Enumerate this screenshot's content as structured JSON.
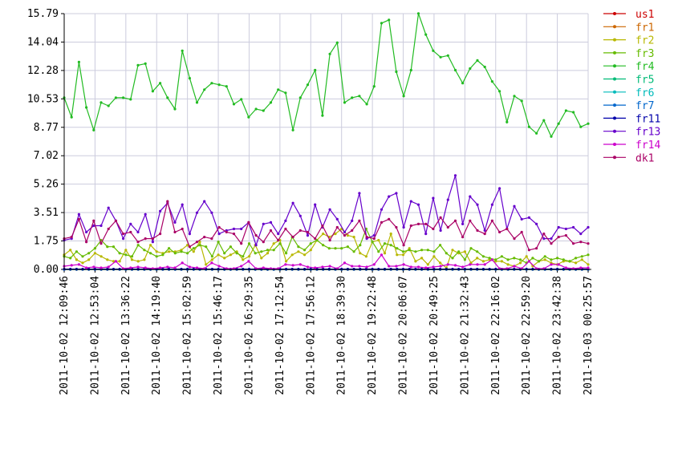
{
  "chart_data": {
    "type": "line",
    "title": "",
    "xlabel": "",
    "ylabel": "",
    "ylim": [
      0,
      15.79
    ],
    "yticks": [
      "0.00",
      "1.75",
      "3.51",
      "5.26",
      "7.02",
      "8.77",
      "10.53",
      "12.28",
      "14.04",
      "15.79"
    ],
    "xticks": [
      "2011-10-02 12:09:46",
      "2011-10-02 12:53:04",
      "2011-10-02 13:36:22",
      "2011-10-02 14:19:40",
      "2011-10-02 15:02:59",
      "2011-10-02 15:46:17",
      "2011-10-02 16:29:35",
      "2011-10-02 17:12:54",
      "2011-10-02 17:56:12",
      "2011-10-02 18:39:30",
      "2011-10-02 19:22:48",
      "2011-10-02 20:06:07",
      "2011-10-02 20:49:25",
      "2011-10-02 21:32:43",
      "2011-10-02 22:16:02",
      "2011-10-02 22:59:20",
      "2011-10-02 23:42:38",
      "2011-10-03 00:25:57"
    ],
    "grid": true,
    "legend_position": "right",
    "series": [
      {
        "name": "us1",
        "color": "#cc0000",
        "values": [
          0,
          0,
          0,
          0,
          0,
          0,
          0,
          0,
          0,
          0,
          0,
          0,
          0,
          0,
          0,
          0,
          0,
          0,
          0,
          0,
          0,
          0,
          0,
          0,
          0,
          0,
          0,
          0,
          0,
          0,
          0,
          0,
          0,
          0,
          0,
          0,
          0,
          0,
          0,
          0,
          0,
          0,
          0,
          0,
          0,
          0,
          0,
          0,
          0,
          0,
          0,
          0,
          0,
          0,
          0,
          0,
          0,
          0,
          0,
          0,
          0,
          0,
          0,
          0,
          0,
          0,
          0,
          0,
          0,
          0,
          0,
          0,
          0,
          0,
          0,
          0,
          0,
          0,
          0,
          0,
          0,
          0,
          0,
          0,
          0,
          0
        ]
      },
      {
        "name": "fr1",
        "color": "#cc6600",
        "values": [
          0,
          0,
          0,
          0,
          0,
          0,
          0,
          0,
          0,
          0,
          0,
          0,
          0,
          0,
          0,
          0,
          0,
          0,
          0,
          0,
          0,
          0,
          0,
          0,
          0,
          0,
          0,
          0,
          0,
          0,
          0,
          0,
          0,
          0,
          0,
          0,
          0,
          0,
          0,
          0,
          0,
          0,
          0,
          0,
          0,
          0,
          0,
          0,
          0,
          0,
          0,
          0,
          0,
          0,
          0,
          0,
          0,
          0,
          0,
          0,
          0,
          0,
          0,
          0,
          0,
          0,
          0,
          0,
          0,
          0,
          0,
          0,
          0,
          0,
          0,
          0,
          0,
          0,
          0,
          0,
          0,
          0,
          0,
          0,
          0,
          0
        ]
      },
      {
        "name": "fr2",
        "color": "#b8b800",
        "values": [
          0.9,
          1.2,
          0.6,
          0.4,
          0.6,
          1.0,
          0.8,
          0.6,
          0.5,
          0.5,
          1.2,
          0.6,
          0.5,
          0.6,
          1.5,
          1.1,
          1.0,
          1.1,
          1.1,
          1.2,
          1.5,
          1.1,
          1.7,
          0.3,
          0.6,
          0.9,
          0.7,
          0.9,
          1.1,
          0.6,
          0.8,
          1.5,
          0.7,
          1.0,
          1.6,
          1.8,
          0.5,
          0.9,
          1.1,
          0.9,
          1.2,
          1.8,
          2.2,
          2.0,
          2.2,
          2.5,
          2.1,
          2.0,
          1.0,
          0.8,
          1.7,
          1.8,
          1.0,
          2.2,
          0.9,
          0.9,
          1.3,
          0.5,
          0.7,
          0.3,
          0.8,
          0.4,
          0.1,
          1.2,
          1.0,
          1.1,
          0.4,
          0.7,
          0.5,
          0.6,
          0.5,
          0.5,
          0.3,
          0.2,
          0.4,
          0.8,
          0.2,
          0.5,
          0.6,
          0.4,
          0.3,
          0.5,
          0.5,
          0.4,
          0.6,
          0.3
        ]
      },
      {
        "name": "fr3",
        "color": "#66bb00",
        "values": [
          0.8,
          0.7,
          1.1,
          0.8,
          1.0,
          1.3,
          1.8,
          1.4,
          1.4,
          1.0,
          0.9,
          0.8,
          1.5,
          1.2,
          1.0,
          0.8,
          0.9,
          1.3,
          1.0,
          1.1,
          1.0,
          1.3,
          1.5,
          1.4,
          0.8,
          1.7,
          1.0,
          1.4,
          1.0,
          0.8,
          1.6,
          1.0,
          1.1,
          1.2,
          1.2,
          1.6,
          1.0,
          2.0,
          1.4,
          1.2,
          1.6,
          1.8,
          1.5,
          1.3,
          1.3,
          1.3,
          1.4,
          1.1,
          1.5,
          2.5,
          1.7,
          1.1,
          1.6,
          1.5,
          1.3,
          1.1,
          1.2,
          1.1,
          1.2,
          1.2,
          1.1,
          1.5,
          1.0,
          0.7,
          1.1,
          0.6,
          1.3,
          1.1,
          0.8,
          0.7,
          0.6,
          0.8,
          0.6,
          0.7,
          0.6,
          0.4,
          0.7,
          0.5,
          0.8,
          0.6,
          0.7,
          0.6,
          0.5,
          0.7,
          0.8,
          0.9
        ]
      },
      {
        "name": "fr4",
        "color": "#22bb22",
        "values": [
          10.6,
          9.4,
          12.8,
          10.0,
          8.6,
          10.3,
          10.1,
          10.6,
          10.6,
          10.5,
          12.6,
          12.7,
          11.0,
          11.5,
          10.6,
          9.9,
          13.5,
          11.8,
          10.3,
          11.1,
          11.5,
          11.4,
          11.3,
          10.2,
          10.5,
          9.4,
          9.9,
          9.8,
          10.3,
          11.1,
          10.9,
          8.6,
          10.6,
          11.4,
          12.3,
          9.5,
          13.3,
          14.0,
          10.3,
          10.6,
          10.7,
          10.2,
          11.3,
          15.2,
          15.4,
          12.2,
          10.7,
          12.3,
          15.8,
          14.5,
          13.5,
          13.1,
          13.2,
          12.3,
          11.5,
          12.4,
          12.9,
          12.5,
          11.6,
          11.0,
          9.1,
          10.7,
          10.4,
          8.8,
          8.4,
          9.2,
          8.2,
          9.0,
          9.8,
          9.7,
          8.8,
          9.0
        ]
      },
      {
        "name": "fr5",
        "color": "#00bb77",
        "values": [
          0,
          0,
          0,
          0,
          0,
          0,
          0,
          0,
          0,
          0,
          0,
          0,
          0,
          0,
          0,
          0,
          0,
          0,
          0,
          0,
          0,
          0,
          0,
          0,
          0,
          0,
          0,
          0,
          0,
          0,
          0,
          0,
          0,
          0,
          0,
          0,
          0,
          0,
          0,
          0,
          0,
          0,
          0,
          0,
          0,
          0,
          0,
          0,
          0,
          0,
          0,
          0,
          0,
          0,
          0,
          0,
          0,
          0,
          0,
          0,
          0,
          0,
          0,
          0,
          0,
          0,
          0,
          0,
          0,
          0,
          0,
          0,
          0,
          0,
          0,
          0,
          0,
          0,
          0,
          0,
          0,
          0,
          0,
          0,
          0,
          0
        ]
      },
      {
        "name": "fr6",
        "color": "#00bbbb",
        "values": [
          0,
          0,
          0,
          0,
          0,
          0,
          0,
          0,
          0,
          0,
          0,
          0,
          0,
          0,
          0,
          0,
          0,
          0,
          0,
          0,
          0,
          0,
          0,
          0,
          0,
          0,
          0,
          0,
          0,
          0,
          0,
          0,
          0,
          0,
          0,
          0,
          0,
          0,
          0,
          0,
          0,
          0,
          0,
          0,
          0,
          0,
          0,
          0,
          0,
          0,
          0,
          0,
          0,
          0,
          0,
          0,
          0,
          0,
          0,
          0,
          0,
          0,
          0,
          0,
          0,
          0,
          0,
          0,
          0,
          0,
          0,
          0,
          0,
          0,
          0,
          0,
          0,
          0,
          0,
          0,
          0,
          0,
          0,
          0,
          0,
          0
        ]
      },
      {
        "name": "fr7",
        "color": "#0066cc",
        "values": [
          0,
          0,
          0,
          0,
          0,
          0,
          0,
          0,
          0,
          0,
          0,
          0,
          0,
          0,
          0,
          0,
          0,
          0,
          0,
          0,
          0,
          0,
          0,
          0,
          0,
          0,
          0,
          0,
          0,
          0,
          0,
          0,
          0,
          0,
          0,
          0,
          0,
          0,
          0,
          0,
          0,
          0,
          0,
          0,
          0,
          0,
          0,
          0,
          0,
          0,
          0,
          0,
          0,
          0,
          0,
          0,
          0,
          0,
          0,
          0,
          0,
          0,
          0,
          0,
          0,
          0,
          0,
          0,
          0,
          0,
          0,
          0,
          0,
          0,
          0,
          0,
          0,
          0,
          0,
          0,
          0,
          0,
          0,
          0,
          0,
          0
        ]
      },
      {
        "name": "fr11",
        "color": "#0000aa",
        "values": [
          0.02,
          0.02,
          0.02,
          0.02,
          0.02,
          0.02,
          0.02,
          0.02,
          0.02,
          0.02,
          0.02,
          0.02,
          0.02,
          0.02,
          0.02,
          0.02,
          0.02,
          0.02,
          0.02,
          0.02,
          0.02,
          0.02,
          0.02,
          0.02,
          0.02,
          0.02,
          0.02,
          0.02,
          0.02,
          0.02,
          0.02,
          0.02,
          0.02,
          0.02,
          0.02,
          0.02,
          0.02,
          0.02,
          0.02,
          0.02,
          0.02,
          0.02,
          0.02,
          0.02,
          0.02,
          0.02,
          0.02,
          0.02,
          0.02,
          0.02,
          0.02,
          0.02,
          0.02,
          0.02,
          0.02,
          0.02,
          0.02,
          0.02,
          0.02,
          0.02,
          0.02,
          0.02,
          0.02,
          0.02,
          0.02,
          0.02,
          0.02,
          0.02,
          0.02,
          0.02,
          0.02,
          0.02,
          0.02,
          0.02,
          0.02,
          0.02,
          0.02,
          0.02,
          0.02,
          0.02,
          0.02,
          0.02,
          0.02,
          0.02,
          0.02,
          0.02
        ]
      },
      {
        "name": "fr13",
        "color": "#6600cc",
        "values": [
          1.8,
          1.9,
          3.4,
          2.3,
          2.7,
          2.7,
          3.8,
          3.0,
          1.9,
          2.8,
          2.3,
          3.4,
          1.7,
          3.6,
          4.1,
          2.9,
          4.0,
          2.2,
          3.5,
          4.2,
          3.5,
          2.2,
          2.4,
          2.5,
          2.5,
          2.9,
          1.5,
          2.8,
          2.9,
          2.2,
          3.0,
          4.1,
          3.3,
          2.1,
          4.0,
          2.6,
          3.7,
          3.1,
          2.3,
          3.0,
          4.7,
          1.9,
          2.1,
          3.7,
          4.5,
          4.7,
          2.6,
          4.2,
          4.0,
          2.2,
          4.4,
          2.4,
          4.3,
          5.8,
          2.8,
          4.5,
          4.0,
          2.4,
          4.0,
          5.0,
          2.5,
          3.9,
          3.1,
          3.2,
          2.8,
          1.9,
          1.9,
          2.6,
          2.5,
          2.6,
          2.2,
          2.6
        ]
      },
      {
        "name": "fr14",
        "color": "#cc00cc",
        "values": [
          0.2,
          0.25,
          0.3,
          0.1,
          0.15,
          0.1,
          0.15,
          0.5,
          0.05,
          0.1,
          0.15,
          0.1,
          0.05,
          0.1,
          0.15,
          0.1,
          0.4,
          0.15,
          0.1,
          0.05,
          0.4,
          0.2,
          0.05,
          0.05,
          0.2,
          0.5,
          0.05,
          0.1,
          0.05,
          0.05,
          0.3,
          0.25,
          0.3,
          0.15,
          0.1,
          0.15,
          0.2,
          0.05,
          0.4,
          0.2,
          0.2,
          0.15,
          0.3,
          0.9,
          0.2,
          0.2,
          0.3,
          0.15,
          0.15,
          0.1,
          0.15,
          0.2,
          0.3,
          0.25,
          0.15,
          0.3,
          0.3,
          0.3,
          0.6,
          0.05,
          0.05,
          0.2,
          0.05,
          0.5,
          0.05,
          0.05,
          0.3,
          0.3,
          0.1,
          0.05,
          0.1,
          0.1
        ]
      },
      {
        "name": "dk1",
        "color": "#aa0066",
        "values": [
          1.9,
          2.0,
          3.1,
          1.7,
          3.0,
          1.6,
          2.5,
          3.0,
          2.2,
          2.3,
          1.7,
          1.9,
          1.9,
          2.2,
          4.2,
          2.3,
          2.5,
          1.4,
          1.7,
          2.0,
          1.9,
          2.6,
          2.3,
          2.2,
          1.6,
          2.9,
          2.1,
          1.7,
          2.4,
          1.8,
          2.5,
          2.0,
          2.4,
          2.3,
          1.9,
          2.7,
          1.8,
          2.6,
          2.1,
          2.4,
          3.0,
          2.0,
          1.9,
          2.9,
          3.1,
          2.6,
          1.5,
          2.7,
          2.8,
          2.8,
          2.5,
          3.2,
          2.6,
          3.0,
          2.0,
          3.0,
          2.4,
          2.2,
          3.0,
          2.3,
          2.5,
          1.9,
          2.3,
          1.2,
          1.3,
          2.2,
          1.6,
          2.0,
          2.1,
          1.6,
          1.7,
          1.6
        ]
      }
    ]
  }
}
